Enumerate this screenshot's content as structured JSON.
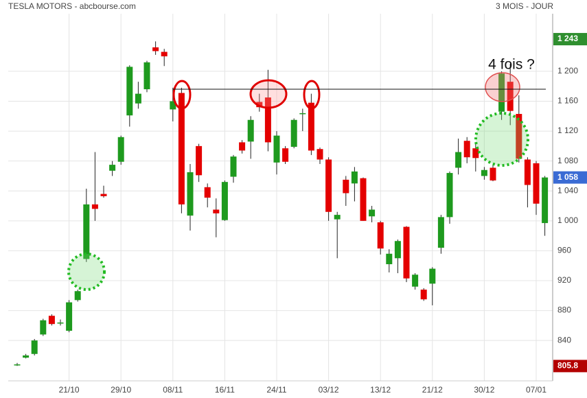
{
  "chart_data": {
    "type": "candlestick",
    "title": "TESLA MOTORS - abcbourse.com",
    "subtitle": "3 MOIS - JOUR",
    "annotation": "4 fois ?",
    "up_color": "#1e9a1e",
    "down_color": "#e40000",
    "grid": true,
    "ylim": [
      786,
      1277
    ],
    "yticks": [
      840,
      880,
      920,
      960,
      {
        "value": 1000,
        "label": "1 000"
      },
      {
        "value": 1040,
        "label": "1 040"
      },
      {
        "value": 1080,
        "label": "1 080"
      },
      {
        "value": 1120,
        "label": "1 120"
      },
      {
        "value": 1160,
        "label": "1 160"
      },
      {
        "value": 1200,
        "label": "1 200"
      }
    ],
    "price_markers": [
      {
        "value": 1243,
        "label": "1 243",
        "color": "#2f8f2f"
      },
      {
        "value": 1058,
        "label": "1 058",
        "color": "#3a6bd4"
      },
      {
        "value": 805.8,
        "label": "805.8",
        "color": "#b30000"
      }
    ],
    "horizontal_line": 1176,
    "categories": [
      null,
      null,
      null,
      null,
      null,
      null,
      "21/10",
      null,
      null,
      null,
      null,
      null,
      "29/10",
      null,
      null,
      null,
      null,
      null,
      "08/11",
      null,
      null,
      null,
      null,
      null,
      "16/11",
      null,
      null,
      null,
      null,
      null,
      "24/11",
      null,
      null,
      null,
      null,
      null,
      "03/12",
      null,
      null,
      null,
      null,
      null,
      "13/12",
      null,
      null,
      null,
      null,
      null,
      "21/12",
      null,
      null,
      null,
      null,
      null,
      "30/12",
      null,
      null,
      null,
      null,
      null,
      "07/01",
      null
    ],
    "open": [
      808,
      817,
      822,
      848,
      873,
      864,
      853,
      894,
      949,
      1022,
      1036,
      1067,
      1079,
      1141,
      1157,
      1176,
      1232,
      1226,
      1149,
      1171,
      1007,
      1100,
      1045,
      1015,
      1001,
      1059,
      1105,
      1106,
      1159,
      1165,
      1078,
      1097,
      1099,
      1143,
      1158,
      1096,
      1082,
      1002,
      1055,
      1050,
      1057,
      1006,
      998,
      942,
      950,
      992,
      912,
      908,
      916,
      964,
      1005,
      1071,
      1107,
      1097,
      1060,
      1071,
      1146,
      1186,
      1143,
      1082,
      1077,
      997
    ],
    "high": [
      810,
      822,
      842,
      869,
      875,
      868,
      894,
      908,
      1043,
      1092,
      1047,
      1080,
      1114,
      1208,
      1186,
      1214,
      1240,
      1230,
      1178,
      1178,
      1076,
      1103,
      1050,
      1030,
      1054,
      1088,
      1108,
      1140,
      1170,
      1202,
      1120,
      1100,
      1137,
      1150,
      1170,
      1098,
      1085,
      1012,
      1060,
      1072,
      1058,
      1020,
      1000,
      962,
      975,
      993,
      930,
      910,
      938,
      1008,
      1066,
      1110,
      1112,
      1105,
      1072,
      1075,
      1200,
      1210,
      1168,
      1085,
      1080,
      1060
    ],
    "low": [
      806,
      816,
      820,
      846,
      860,
      860,
      851,
      892,
      945,
      1000,
      1031,
      1060,
      1075,
      1126,
      1150,
      1172,
      1222,
      1207,
      1133,
      1010,
      987,
      1052,
      1018,
      978,
      1000,
      1051,
      1090,
      1083,
      1146,
      1093,
      1062,
      1076,
      1097,
      1120,
      1088,
      1076,
      1000,
      950,
      1020,
      1026,
      1000,
      998,
      955,
      931,
      930,
      918,
      908,
      893,
      887,
      956,
      996,
      1062,
      1077,
      1066,
      1055,
      1053,
      1135,
      1128,
      1078,
      1018,
      1008,
      980
    ],
    "close": [
      808,
      820,
      840,
      867,
      862,
      864,
      891,
      906,
      1022,
      1016,
      1033,
      1075,
      1112,
      1206,
      1170,
      1212,
      1227,
      1220,
      1160,
      1022,
      1065,
      1061,
      1031,
      1010,
      1052,
      1086,
      1094,
      1135,
      1152,
      1105,
      1114,
      1079,
      1135,
      1144,
      1094,
      1082,
      1012,
      1008,
      1037,
      1066,
      1000,
      1015,
      963,
      956,
      973,
      923,
      928,
      895,
      936,
      1005,
      1064,
      1092,
      1085,
      1084,
      1068,
      1054,
      1197,
      1147,
      1083,
      1048,
      1023,
      1058
    ]
  }
}
